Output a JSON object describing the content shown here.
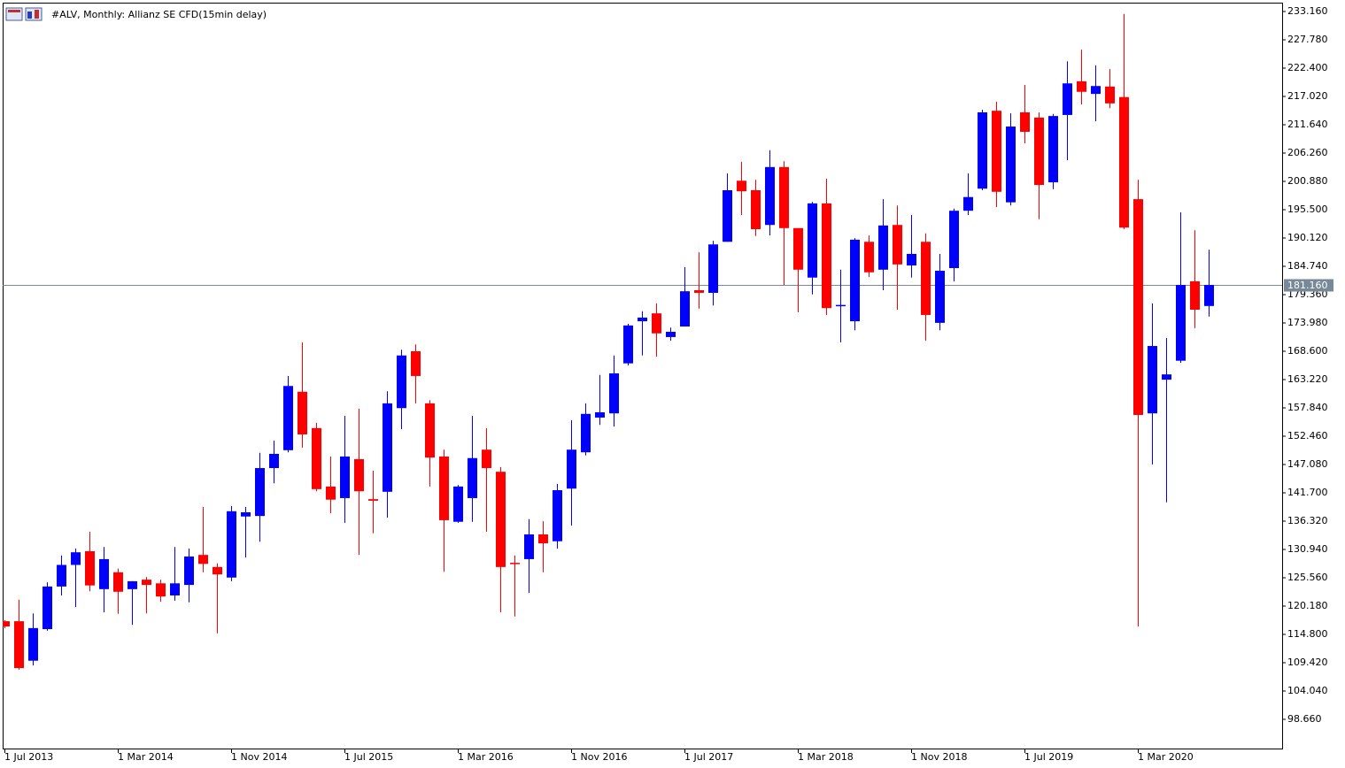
{
  "chart_data": {
    "type": "candlestick",
    "title": "#ALV, Monthly:  Allianz SE CFD(15min delay)",
    "categories": [
      "1 Jul 2013",
      null,
      null,
      null,
      null,
      null,
      null,
      null,
      "1 Mar 2014",
      null,
      null,
      null,
      null,
      null,
      null,
      null,
      "1 Nov 2014",
      null,
      null,
      null,
      null,
      null,
      null,
      null,
      "1 Jul 2015",
      null,
      null,
      null,
      null,
      null,
      null,
      null,
      "1 Mar 2016",
      null,
      null,
      null,
      null,
      null,
      null,
      null,
      "1 Nov 2016",
      null,
      null,
      null,
      null,
      null,
      null,
      null,
      "1 Jul 2017",
      null,
      null,
      null,
      null,
      null,
      null,
      null,
      "1 Mar 2018",
      null,
      null,
      null,
      null,
      null,
      null,
      null,
      "1 Nov 2018",
      null,
      null,
      null,
      null,
      null,
      null,
      null,
      "1 Jul 2019",
      null,
      null,
      null,
      null,
      null,
      null,
      null,
      "1 Mar 2020",
      null,
      null,
      null,
      null,
      null
    ],
    "open": [
      117.3,
      117.3,
      109.8,
      115.8,
      123.9,
      128.0,
      130.6,
      123.4,
      126.6,
      123.4,
      125.2,
      124.5,
      122.2,
      124.2,
      129.9,
      127.6,
      125.6,
      137.2,
      137.3,
      146.4,
      149.8,
      160.9,
      154.0,
      142.9,
      140.7,
      148.1,
      140.5,
      141.9,
      157.8,
      168.6,
      158.7,
      148.6,
      136.2,
      140.7,
      149.9,
      145.7,
      128.4,
      129.1,
      133.8,
      132.5,
      142.5,
      149.4,
      156.0,
      156.8,
      166.3,
      174.3,
      175.8,
      171.3,
      173.3,
      180.2,
      179.7,
      189.4,
      201.0,
      199.2,
      192.6,
      203.6,
      192.0,
      182.6,
      196.7,
      177.2,
      174.3,
      189.4,
      184.1,
      192.6,
      184.9,
      189.4,
      174.0,
      184.4,
      195.3,
      199.5,
      214.3,
      196.9,
      214.0,
      213.0,
      200.7,
      213.5,
      219.9,
      217.5,
      218.9,
      216.9,
      197.5,
      156.8,
      163.2,
      166.8,
      181.9,
      177.2
    ],
    "high": [
      117.5,
      121.4,
      118.8,
      124.7,
      129.8,
      131.1,
      134.3,
      131.4,
      127.3,
      124.9,
      125.7,
      125.2,
      131.4,
      131.1,
      139.0,
      128.3,
      139.2,
      139.0,
      149.3,
      151.6,
      163.9,
      170.3,
      155.0,
      148.6,
      156.3,
      157.7,
      145.9,
      161.0,
      168.9,
      169.9,
      159.3,
      149.9,
      143.2,
      156.3,
      154.0,
      146.6,
      129.8,
      136.7,
      136.3,
      143.4,
      155.5,
      158.7,
      164.1,
      167.8,
      173.8,
      176.2,
      177.7,
      173.1,
      184.6,
      187.4,
      189.6,
      202.4,
      204.6,
      201.2,
      206.8,
      204.7,
      192.0,
      197.0,
      201.4,
      184.1,
      190.1,
      190.6,
      197.5,
      196.3,
      194.5,
      191.0,
      187.1,
      195.7,
      202.4,
      214.5,
      216.0,
      213.8,
      219.2,
      214.0,
      213.7,
      223.7,
      225.9,
      222.9,
      222.2,
      232.7,
      201.2,
      177.7,
      171.1,
      195.0,
      191.6,
      187.9
    ],
    "low": [
      116.0,
      108.1,
      108.9,
      115.5,
      122.2,
      120.0,
      123.0,
      119.0,
      118.7,
      116.6,
      118.8,
      121.0,
      121.2,
      120.9,
      126.6,
      115.0,
      124.9,
      129.4,
      132.4,
      143.5,
      149.4,
      150.3,
      142.0,
      137.8,
      136.0,
      129.9,
      134.0,
      137.0,
      153.8,
      158.7,
      142.9,
      126.7,
      136.0,
      136.2,
      134.3,
      119.0,
      118.2,
      122.7,
      126.6,
      131.1,
      135.5,
      148.8,
      154.6,
      154.3,
      165.9,
      167.8,
      167.6,
      170.6,
      173.3,
      176.7,
      177.3,
      189.4,
      194.5,
      190.5,
      190.6,
      181.2,
      176.0,
      179.4,
      175.5,
      170.3,
      172.6,
      182.7,
      180.2,
      176.5,
      182.6,
      170.6,
      172.6,
      181.9,
      194.5,
      199.2,
      196.0,
      196.3,
      208.1,
      193.7,
      199.4,
      204.9,
      215.5,
      212.3,
      214.8,
      191.8,
      116.3,
      147.1,
      139.9,
      166.4,
      173.0,
      175.2
    ],
    "close": [
      116.3,
      108.4,
      116.0,
      123.9,
      128.0,
      130.4,
      124.1,
      129.1,
      122.9,
      124.9,
      124.2,
      122.0,
      124.5,
      129.6,
      128.2,
      126.2,
      138.2,
      138.0,
      146.4,
      149.1,
      162.0,
      152.8,
      142.4,
      140.4,
      148.6,
      142.0,
      140.2,
      158.7,
      167.8,
      163.9,
      148.4,
      136.5,
      142.9,
      148.3,
      146.4,
      127.6,
      128.2,
      133.8,
      132.1,
      142.2,
      149.9,
      156.7,
      157.0,
      164.4,
      173.5,
      175.0,
      172.0,
      172.3,
      180.0,
      179.7,
      188.9,
      199.2,
      199.0,
      191.8,
      203.6,
      192.0,
      184.1,
      196.7,
      176.8,
      177.4,
      189.8,
      183.6,
      192.5,
      185.1,
      187.1,
      175.5,
      183.9,
      195.3,
      197.9,
      214.0,
      198.9,
      211.3,
      210.3,
      200.2,
      213.3,
      219.5,
      217.9,
      219.0,
      215.7,
      192.1,
      156.5,
      169.6,
      164.2,
      181.2,
      176.5,
      181.2
    ],
    "up_color": "#0000ff",
    "down_color": "#ff0000",
    "ylim": [
      93.11,
      234.84
    ],
    "yticks": [
      {
        "value": 233.16,
        "label": "233.160"
      },
      {
        "value": 227.78,
        "label": "227.780"
      },
      {
        "value": 222.4,
        "label": "222.400"
      },
      {
        "value": 217.02,
        "label": "217.020"
      },
      {
        "value": 211.64,
        "label": "211.640"
      },
      {
        "value": 206.26,
        "label": "206.260"
      },
      {
        "value": 200.88,
        "label": "200.880"
      },
      {
        "value": 195.5,
        "label": "195.500"
      },
      {
        "value": 190.12,
        "label": "190.120"
      },
      {
        "value": 184.74,
        "label": "184.740"
      },
      {
        "value": 179.36,
        "label": "179.360"
      },
      {
        "value": 173.98,
        "label": "173.980"
      },
      {
        "value": 168.6,
        "label": "168.600"
      },
      {
        "value": 163.22,
        "label": "163.220"
      },
      {
        "value": 157.84,
        "label": "157.840"
      },
      {
        "value": 152.46,
        "label": "152.460"
      },
      {
        "value": 147.08,
        "label": "147.080"
      },
      {
        "value": 141.7,
        "label": "141.700"
      },
      {
        "value": 136.32,
        "label": "136.320"
      },
      {
        "value": 130.94,
        "label": "130.940"
      },
      {
        "value": 125.56,
        "label": "125.560"
      },
      {
        "value": 120.18,
        "label": "120.180"
      },
      {
        "value": 114.8,
        "label": "114.800"
      },
      {
        "value": 109.42,
        "label": "109.420"
      },
      {
        "value": 104.04,
        "label": "104.040"
      },
      {
        "value": 98.66,
        "label": "98.660"
      }
    ],
    "last_price": {
      "value": 181.16,
      "label": "181.160"
    }
  }
}
